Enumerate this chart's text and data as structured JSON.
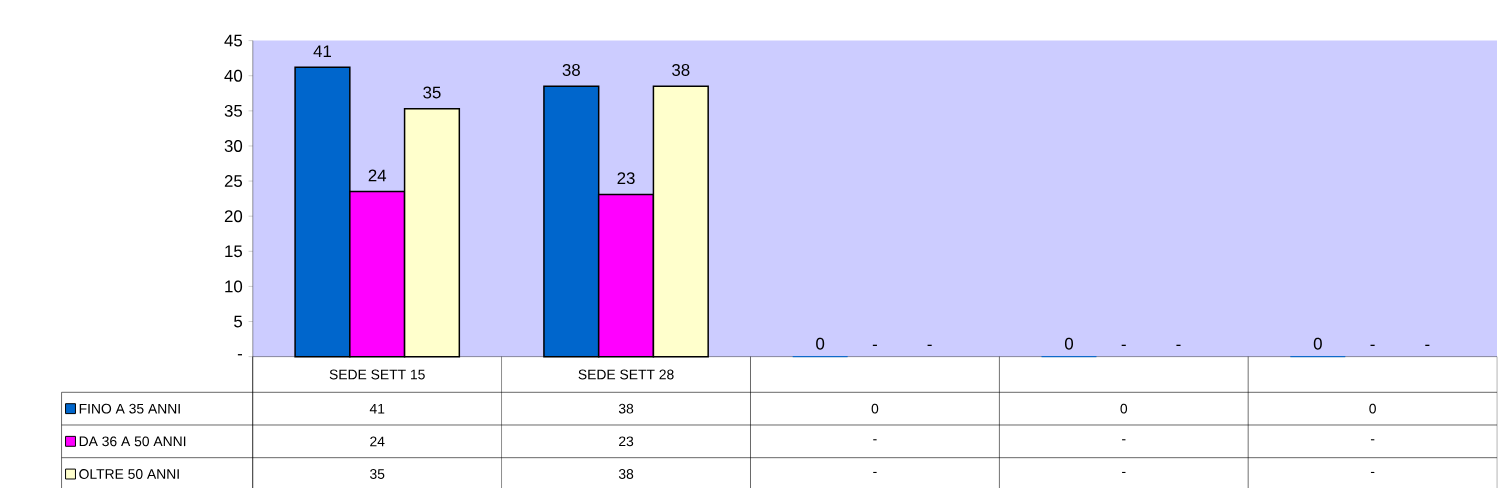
{
  "chart_data": {
    "type": "bar",
    "categories": [
      "SEDE SETT 15",
      "SEDE SETT 28",
      null,
      null,
      null
    ],
    "series": [
      {
        "name": "FINO A 35 ANNI",
        "color": "#0066cc",
        "values": [
          41.2,
          38.5,
          0,
          0,
          0
        ],
        "value_labels": [
          "41",
          "38",
          "0",
          "0",
          "0"
        ]
      },
      {
        "name": "DA 36 A 50 ANNI",
        "color": "#ff00ff",
        "values": [
          23.5,
          23.1,
          null,
          null,
          null
        ],
        "value_labels": [
          "24",
          "23",
          "-",
          "-",
          "-"
        ]
      },
      {
        "name": "OLTRE 50 ANNI",
        "color": "#ffffcc",
        "values": [
          35.3,
          38.5,
          null,
          null,
          null
        ],
        "value_labels": [
          "35",
          "38",
          "-",
          "-",
          "-"
        ]
      }
    ],
    "ylim": [
      0,
      45
    ],
    "yticks": [
      {
        "value": 0,
        "label": "-"
      },
      5,
      10,
      15,
      20,
      25,
      30,
      35,
      40,
      45
    ],
    "legend": "bottom",
    "grid": false
  }
}
